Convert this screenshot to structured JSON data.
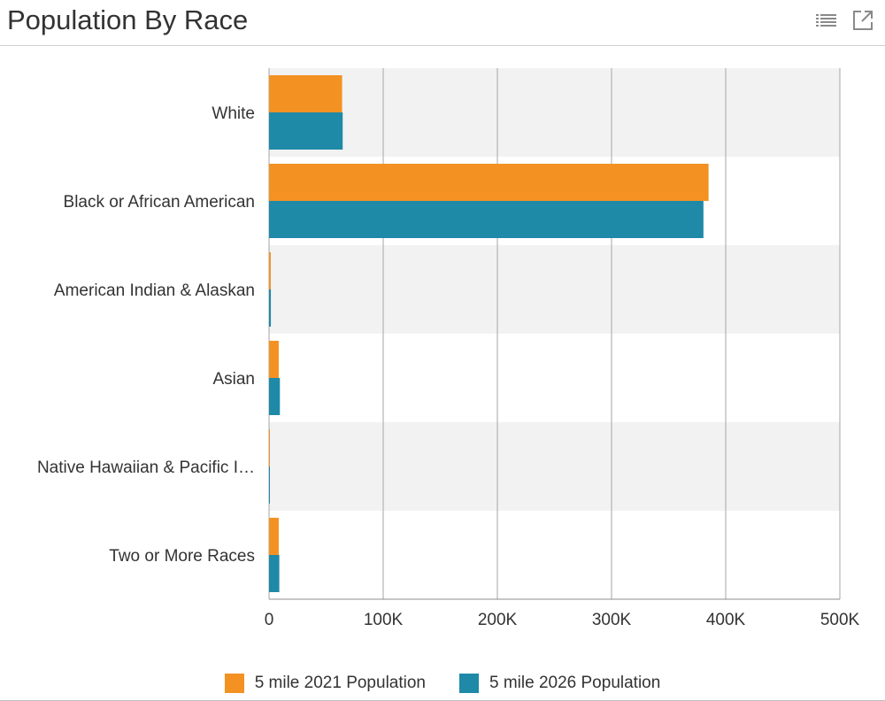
{
  "header": {
    "title": "Population By Race",
    "icons": [
      "list-icon",
      "open-external-icon"
    ]
  },
  "colors": {
    "series_2021": "#f39223",
    "series_2026": "#1f89a8",
    "band": "#f2f2f2",
    "grid": "#a6a6a6"
  },
  "chart_data": {
    "type": "bar",
    "orientation": "horizontal",
    "title": "Population By Race",
    "categories": [
      "White",
      "Black or African American",
      "American Indian & Alaskan",
      "Asian",
      "Native Hawaiian & Pacific I…",
      "Two or More Races"
    ],
    "series": [
      {
        "name": "5 mile 2021 Population",
        "color": "#f39223",
        "values": [
          64000,
          385000,
          1500,
          8500,
          600,
          8500
        ]
      },
      {
        "name": "5 mile 2026 Population",
        "color": "#1f89a8",
        "values": [
          64500,
          380500,
          1600,
          9500,
          600,
          9000
        ]
      }
    ],
    "xlim": [
      0,
      500000
    ],
    "xticks": [
      "0",
      "100K",
      "200K",
      "300K",
      "400K",
      "500K"
    ],
    "grid": true,
    "legend_position": "bottom"
  }
}
